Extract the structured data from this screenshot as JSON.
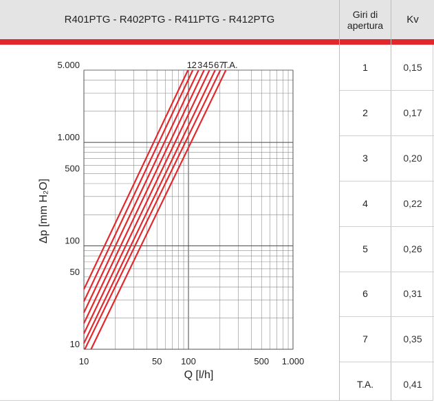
{
  "header": {
    "title": "R401PTG - R402PTG - R411PTG - R412PTG",
    "giri_label": "Giri di apertura",
    "kv_label": "Kv"
  },
  "table": {
    "rows": [
      {
        "giri": "1",
        "kv": "0,15"
      },
      {
        "giri": "2",
        "kv": "0,17"
      },
      {
        "giri": "3",
        "kv": "0,20"
      },
      {
        "giri": "4",
        "kv": "0,22"
      },
      {
        "giri": "5",
        "kv": "0,26"
      },
      {
        "giri": "6",
        "kv": "0,31"
      },
      {
        "giri": "7",
        "kv": "0,35"
      },
      {
        "giri": "T.A.",
        "kv": "0,41"
      }
    ]
  },
  "chart_data": {
    "type": "line",
    "xscale": "log",
    "yscale": "log",
    "xlim": [
      10,
      1000
    ],
    "ylim": [
      10,
      5000
    ],
    "xlabel": "Q [l/h]",
    "ylabel": "Δp [mm H₂O]",
    "x_ticks": [
      10,
      50,
      100,
      500,
      1000
    ],
    "x_tick_labels": [
      "10",
      "50",
      "100",
      "500",
      "1.000"
    ],
    "y_ticks": [
      10,
      50,
      100,
      500,
      1000,
      5000
    ],
    "y_tick_labels": [
      "10",
      "50",
      "100",
      "500",
      "1.000",
      "5.000"
    ],
    "grid": true,
    "line_color": "#e2282c",
    "series": [
      {
        "name": "1",
        "points": [
          [
            10,
            38
          ],
          [
            99,
            5000
          ]
        ]
      },
      {
        "name": "2",
        "points": [
          [
            10,
            29
          ],
          [
            110,
            5000
          ]
        ]
      },
      {
        "name": "3",
        "points": [
          [
            10,
            22.6
          ],
          [
            125,
            5000
          ]
        ]
      },
      {
        "name": "4",
        "points": [
          [
            10,
            17.8
          ],
          [
            141,
            5000
          ]
        ]
      },
      {
        "name": "5",
        "points": [
          [
            10,
            14.2
          ],
          [
            159,
            5000
          ]
        ]
      },
      {
        "name": "6",
        "points": [
          [
            10,
            11.4
          ],
          [
            180,
            5000
          ]
        ]
      },
      {
        "name": "7",
        "points": [
          [
            10.2,
            10
          ],
          [
            202,
            5000
          ]
        ]
      },
      {
        "name": "T.A.",
        "points": [
          [
            11.7,
            10
          ],
          [
            228,
            5000
          ]
        ]
      }
    ]
  }
}
